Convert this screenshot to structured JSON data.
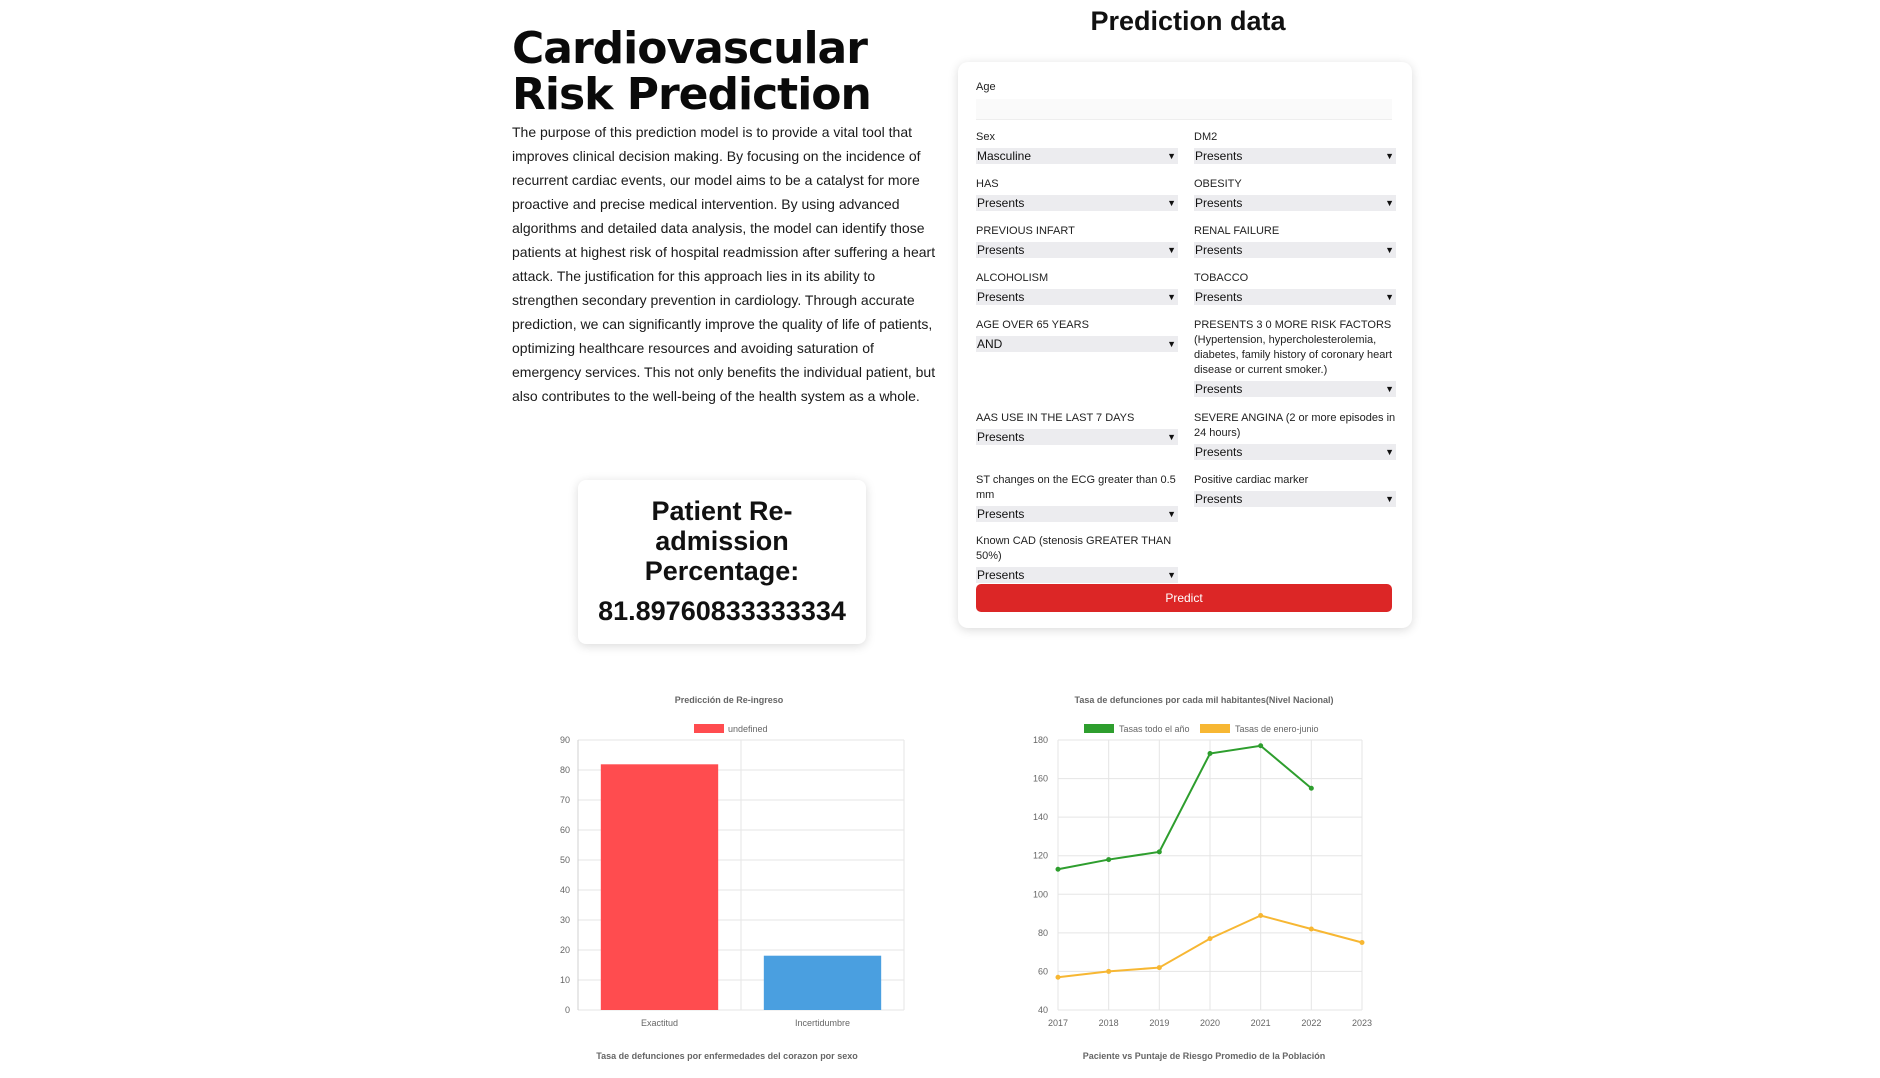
{
  "intro": {
    "title": "Cardiovascular Risk Prediction",
    "body": "The purpose of this prediction model is to provide a vital tool that improves clinical decision making. By focusing on the incidence of recurrent cardiac events, our model aims to be a catalyst for more proactive and precise medical intervention. By using advanced algorithms and detailed data analysis, the model can identify those patients at highest risk of hospital readmission after suffering a heart attack. The justification for this approach lies in its ability to strengthen secondary prevention in cardiology. Through accurate prediction, we can significantly improve the quality of life of patients, optimizing healthcare resources and avoiding saturation of emergency services. This not only benefits the individual patient, but also contributes to the well-being of the health system as a whole."
  },
  "form": {
    "title": "Prediction data",
    "age_label": "Age",
    "age_value": "",
    "fields": {
      "sex": {
        "label": "Sex",
        "value": "Masculine"
      },
      "dm2": {
        "label": "DM2",
        "value": "Presents"
      },
      "has": {
        "label": "HAS",
        "value": "Presents"
      },
      "obesity": {
        "label": "OBESITY",
        "value": "Presents"
      },
      "prev_infart": {
        "label": "PREVIOUS INFART",
        "value": "Presents"
      },
      "renal": {
        "label": "RENAL FAILURE",
        "value": "Presents"
      },
      "alcohol": {
        "label": "ALCOHOLISM",
        "value": "Presents"
      },
      "tobacco": {
        "label": "TOBACCO",
        "value": "Presents"
      },
      "age65": {
        "label": "AGE OVER 65 YEARS",
        "value": "AND"
      },
      "risk3": {
        "label": "PRESENTS 3 0 MORE RISK FACTORS (Hypertension, hypercholesterolemia, diabetes, family history of coronary heart disease or current smoker.)",
        "value": "Presents"
      },
      "aas": {
        "label": "AAS USE IN THE LAST 7 DAYS",
        "value": "Presents"
      },
      "angina": {
        "label": "SEVERE ANGINA (2 or more episodes in 24 hours)",
        "value": "Presents"
      },
      "st": {
        "label": "ST changes on the ECG greater than 0.5 mm",
        "value": "Presents"
      },
      "marker": {
        "label": "Positive cardiac marker",
        "value": "Presents"
      },
      "cad": {
        "label": "Known CAD (stenosis GREATER THAN 50%)",
        "value": "Presents"
      }
    },
    "predict_label": "Predict"
  },
  "result": {
    "title": "Patient Re-admission Percentage:",
    "value": "81.89760833333334"
  },
  "chart_data": [
    {
      "type": "bar",
      "title": "Predicción de Re-ingreso",
      "legend": [
        "undefined"
      ],
      "legend_position": "top",
      "categories": [
        "Exactitud",
        "Incertidumbre"
      ],
      "values": [
        81.9,
        18.1
      ],
      "colors": [
        "#ff4c4f",
        "#4a9fe0"
      ],
      "ylim": [
        0,
        90
      ],
      "yticks": [
        0,
        10,
        20,
        30,
        40,
        50,
        60,
        70,
        80,
        90
      ],
      "grid": true,
      "footer": "Tasa de defunciones por enfermedades del corazon por sexo"
    },
    {
      "type": "line",
      "title": "Tasa de defunciones por cada mil habitantes(Nivel Nacional)",
      "legend_position": "top",
      "x": [
        "2017",
        "2018",
        "2019",
        "2020",
        "2021",
        "2022",
        "2023"
      ],
      "series": [
        {
          "name": "Tasas todo el año",
          "color": "#2e9e2e",
          "values": [
            113,
            118,
            122,
            173,
            177,
            155,
            null
          ]
        },
        {
          "name": "Tasas de enero-junio",
          "color": "#f7b733",
          "values": [
            57,
            60,
            62,
            77,
            89,
            82,
            75
          ]
        }
      ],
      "ylim": [
        40,
        180
      ],
      "yticks": [
        40,
        60,
        80,
        100,
        120,
        140,
        160,
        180
      ],
      "grid": true,
      "footer": "Paciente vs Puntaje de Riesgo Promedio de la Población"
    }
  ]
}
